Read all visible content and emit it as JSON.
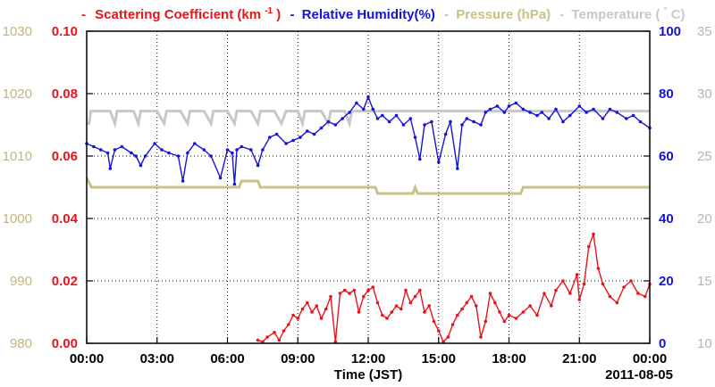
{
  "colors": {
    "scattering": "#e8141c",
    "humidity": "#1414d8",
    "pressure": "#c8c286",
    "temperature": "#c8c8c8",
    "pressure_axis": "#c0b67e",
    "temperature_axis": "#b4b4b4",
    "grid": "#000000"
  },
  "chart_data": {
    "type": "line",
    "date_label": "2011-08-05",
    "xlabel": "Time (JST)",
    "x_ticks": [
      "00:00",
      "03:00",
      "06:00",
      "09:00",
      "12:00",
      "15:00",
      "18:00",
      "21:00",
      "00:00"
    ],
    "xlim_hours": [
      0,
      24
    ],
    "grid": true,
    "legend_position": "top",
    "legend": [
      {
        "key": "scattering",
        "dash": "-",
        "text": "Scattering Coefficient (km",
        "sup": "-1",
        "tail": ")"
      },
      {
        "key": "humidity",
        "dash": "-",
        "text": "Relative Humidity(%)",
        "sup": "",
        "tail": ""
      },
      {
        "key": "pressure",
        "dash": "-",
        "text": "Pressure (hPa)",
        "sup": "",
        "tail": ""
      },
      {
        "key": "temperature",
        "dash": "-",
        "text": "Temperature (",
        "sup": "°",
        "tail": "C)"
      }
    ],
    "axes": {
      "scattering": {
        "ticks": [
          "0.00",
          "0.02",
          "0.04",
          "0.06",
          "0.08",
          "0.10"
        ],
        "ylim": [
          0,
          0.1
        ]
      },
      "pressure": {
        "ticks": [
          "980",
          "990",
          "1000",
          "1010",
          "1020",
          "1030"
        ],
        "ylim": [
          980,
          1030
        ]
      },
      "humidity": {
        "ticks": [
          "0",
          "20",
          "40",
          "60",
          "80",
          "100"
        ],
        "ylim": [
          0,
          100
        ]
      },
      "temperature": {
        "ticks": [
          "10",
          "15",
          "20",
          "25",
          "30",
          "35"
        ],
        "ylim": [
          10,
          35
        ]
      }
    },
    "series": [
      {
        "name": "Temperature",
        "key": "temperature",
        "axis": "temperature",
        "markers": false,
        "x": [
          0,
          0.1,
          0.18,
          0.35,
          1.0,
          1.2,
          1.3,
          2.0,
          2.2,
          2.3,
          3.0,
          3.3,
          3.4,
          4.0,
          4.3,
          4.4,
          5.0,
          5.3,
          5.4,
          6.0,
          6.3,
          6.4,
          7.0,
          7.3,
          7.4,
          8.0,
          8.3,
          8.5,
          9.0,
          9.2,
          9.3,
          10.0,
          10.3,
          10.4,
          11.0,
          11.2,
          11.3,
          12.0,
          24.0
        ],
        "y": [
          27.6,
          27.6,
          28.6,
          28.6,
          28.6,
          27.6,
          28.6,
          28.6,
          27.6,
          28.6,
          28.6,
          27.6,
          28.6,
          28.6,
          27.6,
          28.6,
          28.6,
          27.6,
          28.6,
          28.6,
          27.6,
          28.6,
          28.6,
          27.6,
          28.6,
          28.6,
          27.6,
          28.6,
          28.6,
          27.6,
          28.6,
          28.6,
          27.6,
          28.6,
          28.6,
          27.6,
          28.6,
          28.6,
          28.6
        ]
      },
      {
        "name": "Pressure",
        "key": "pressure",
        "axis": "pressure",
        "markers": false,
        "x": [
          0,
          0.1,
          0.2,
          6.5,
          6.6,
          7.3,
          7.4,
          12.3,
          12.4,
          13.9,
          14.0,
          14.1,
          18.5,
          18.6,
          24.0
        ],
        "y": [
          1006.5,
          1005.8,
          1005.0,
          1005.0,
          1006.0,
          1006.0,
          1005.0,
          1005.0,
          1004.0,
          1004.0,
          1005.0,
          1004.0,
          1004.0,
          1005.0,
          1005.0
        ]
      },
      {
        "name": "Relative Humidity(%)",
        "key": "humidity",
        "axis": "humidity",
        "markers": true,
        "x": [
          0,
          0.3,
          0.6,
          0.9,
          1.0,
          1.2,
          1.5,
          1.9,
          2.1,
          2.3,
          2.5,
          2.9,
          3.2,
          3.5,
          3.9,
          4.1,
          4.3,
          4.6,
          5.0,
          5.3,
          5.7,
          6.0,
          6.2,
          6.3,
          6.4,
          6.6,
          7.0,
          7.3,
          7.5,
          7.8,
          8.1,
          8.5,
          8.8,
          9.1,
          9.4,
          9.7,
          10.0,
          10.3,
          10.6,
          10.9,
          11.2,
          11.5,
          11.8,
          12.0,
          12.2,
          12.4,
          12.6,
          12.9,
          13.2,
          13.5,
          13.8,
          14.0,
          14.2,
          14.4,
          14.7,
          15.0,
          15.3,
          15.5,
          15.8,
          16.0,
          16.2,
          16.5,
          16.8,
          17.0,
          17.2,
          17.5,
          17.8,
          18.0,
          18.3,
          18.6,
          18.9,
          19.2,
          19.4,
          19.7,
          20.0,
          20.3,
          20.6,
          21.0,
          21.3,
          21.6,
          22.0,
          22.3,
          22.6,
          23.0,
          23.3,
          23.6,
          24.0
        ],
        "y": [
          64,
          63,
          62,
          61,
          56,
          62,
          63,
          61,
          60,
          57,
          60,
          64,
          62,
          61,
          60,
          52,
          61,
          64,
          62,
          60,
          53,
          62,
          61,
          51,
          62,
          63,
          62,
          57,
          62,
          66,
          67,
          64,
          65,
          66,
          68,
          67,
          69,
          71,
          70,
          72,
          74,
          77,
          75,
          79,
          75,
          72,
          73,
          71,
          73,
          70,
          72,
          66,
          59,
          70,
          71,
          58,
          67,
          71,
          56,
          70,
          72,
          71,
          70,
          74,
          75,
          76,
          74,
          76,
          77,
          75,
          74,
          73,
          74,
          72,
          75,
          71,
          73,
          76,
          74,
          75,
          72,
          75,
          74,
          72,
          73,
          71,
          69
        ]
      },
      {
        "name": "Scattering Coefficient",
        "key": "scattering",
        "axis": "scattering",
        "markers": true,
        "x": [
          7.3,
          7.5,
          7.7,
          8.0,
          8.2,
          8.4,
          8.6,
          8.8,
          9.0,
          9.2,
          9.4,
          9.6,
          9.8,
          10.0,
          10.2,
          10.4,
          10.6,
          10.8,
          11.0,
          11.2,
          11.4,
          11.6,
          11.8,
          12.0,
          12.2,
          12.4,
          12.6,
          12.8,
          13.0,
          13.2,
          13.4,
          13.6,
          13.8,
          14.0,
          14.2,
          14.4,
          14.6,
          14.8,
          15.0,
          15.2,
          15.4,
          15.6,
          15.8,
          16.0,
          16.2,
          16.4,
          16.6,
          16.8,
          17.0,
          17.2,
          17.4,
          17.6,
          17.8,
          18.0,
          18.3,
          18.6,
          18.9,
          19.2,
          19.5,
          19.8,
          20.0,
          20.3,
          20.6,
          20.9,
          21.0,
          21.2,
          21.4,
          21.6,
          21.8,
          22.0,
          22.3,
          22.6,
          22.9,
          23.2,
          23.5,
          23.8,
          24.0
        ],
        "y": [
          0.001,
          0.0005,
          0.002,
          0.0035,
          0.001,
          0.004,
          0.006,
          0.009,
          0.008,
          0.011,
          0.013,
          0.01,
          0.012,
          0.008,
          0.011,
          0.015,
          0.0005,
          0.016,
          0.017,
          0.016,
          0.017,
          0.01,
          0.015,
          0.017,
          0.018,
          0.013,
          0.009,
          0.008,
          0.01,
          0.012,
          0.011,
          0.017,
          0.013,
          0.015,
          0.017,
          0.01,
          0.012,
          0.007,
          0.004,
          0.0005,
          0.002,
          0.006,
          0.009,
          0.011,
          0.013,
          0.015,
          0.012,
          0.002,
          0.007,
          0.016,
          0.013,
          0.01,
          0.007,
          0.009,
          0.008,
          0.01,
          0.012,
          0.009,
          0.016,
          0.012,
          0.017,
          0.02,
          0.016,
          0.022,
          0.014,
          0.019,
          0.031,
          0.035,
          0.024,
          0.019,
          0.015,
          0.013,
          0.018,
          0.02,
          0.016,
          0.015,
          0.019
        ]
      }
    ]
  }
}
